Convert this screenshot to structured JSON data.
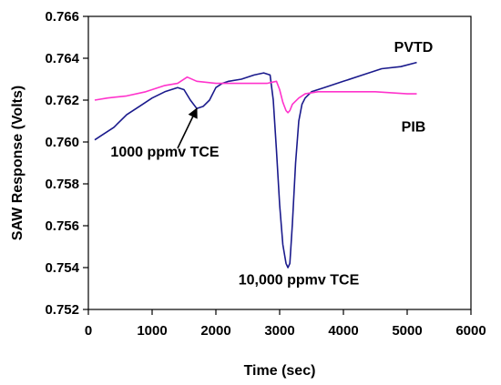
{
  "chart_data": {
    "type": "line",
    "title": "",
    "xlabel": "Time (sec)",
    "ylabel": "SAW Response (Volts)",
    "xlim": [
      0,
      6000
    ],
    "ylim": [
      0.752,
      0.766
    ],
    "x_ticks": [
      0,
      1000,
      2000,
      3000,
      4000,
      5000,
      6000
    ],
    "y_ticks": [
      0.752,
      0.754,
      0.756,
      0.758,
      0.76,
      0.762,
      0.764,
      0.766
    ],
    "x_tick_labels": [
      "0",
      "1000",
      "2000",
      "3000",
      "4000",
      "5000",
      "6000"
    ],
    "y_tick_labels": [
      "0.752",
      "0.754",
      "0.756",
      "0.758",
      "0.760",
      "0.762",
      "0.764",
      "0.766"
    ],
    "grid": false,
    "legend": "none",
    "series": [
      {
        "name": "PVTD",
        "color": "#1a1a8c",
        "x": [
          100,
          200,
          400,
          600,
          800,
          1000,
          1200,
          1400,
          1500,
          1600,
          1700,
          1800,
          1900,
          2000,
          2100,
          2200,
          2400,
          2600,
          2750,
          2850,
          2900,
          2950,
          3000,
          3050,
          3100,
          3130,
          3160,
          3200,
          3250,
          3300,
          3350,
          3400,
          3500,
          3700,
          4000,
          4300,
          4600,
          4900,
          5150
        ],
        "y": [
          0.7601,
          0.7603,
          0.7607,
          0.7613,
          0.7617,
          0.7621,
          0.7624,
          0.7626,
          0.7625,
          0.762,
          0.7616,
          0.7617,
          0.762,
          0.7626,
          0.7628,
          0.7629,
          0.763,
          0.7632,
          0.7633,
          0.7632,
          0.762,
          0.7596,
          0.757,
          0.7551,
          0.7542,
          0.754,
          0.7542,
          0.7561,
          0.759,
          0.761,
          0.7618,
          0.7621,
          0.7624,
          0.7626,
          0.7629,
          0.7632,
          0.7635,
          0.7636,
          0.7638
        ]
      },
      {
        "name": "PIB",
        "color": "#ff33cc",
        "x": [
          100,
          300,
          600,
          900,
          1200,
          1400,
          1550,
          1700,
          2000,
          2400,
          2800,
          2950,
          3000,
          3050,
          3100,
          3130,
          3160,
          3200,
          3300,
          3400,
          3600,
          4000,
          4500,
          5000,
          5150
        ],
        "y": [
          0.762,
          0.7621,
          0.7622,
          0.7624,
          0.7627,
          0.7628,
          0.7631,
          0.7629,
          0.7628,
          0.7628,
          0.7628,
          0.7629,
          0.7625,
          0.7619,
          0.7615,
          0.7614,
          0.7615,
          0.7618,
          0.7621,
          0.7623,
          0.7624,
          0.7624,
          0.7624,
          0.7623,
          0.7623
        ]
      }
    ],
    "annotations": [
      {
        "text": "PVTD",
        "x": 5100,
        "y": 0.7643
      },
      {
        "text": "PIB",
        "x": 5100,
        "y": 0.7605
      },
      {
        "text": "1000 ppmv TCE",
        "x": 1200,
        "y": 0.7593,
        "arrow_to": [
          1700,
          0.7616
        ],
        "arrow_from": [
          1400,
          0.7597
        ]
      },
      {
        "text": "10,000 ppmv TCE",
        "x": 3300,
        "y": 0.7532
      }
    ]
  }
}
